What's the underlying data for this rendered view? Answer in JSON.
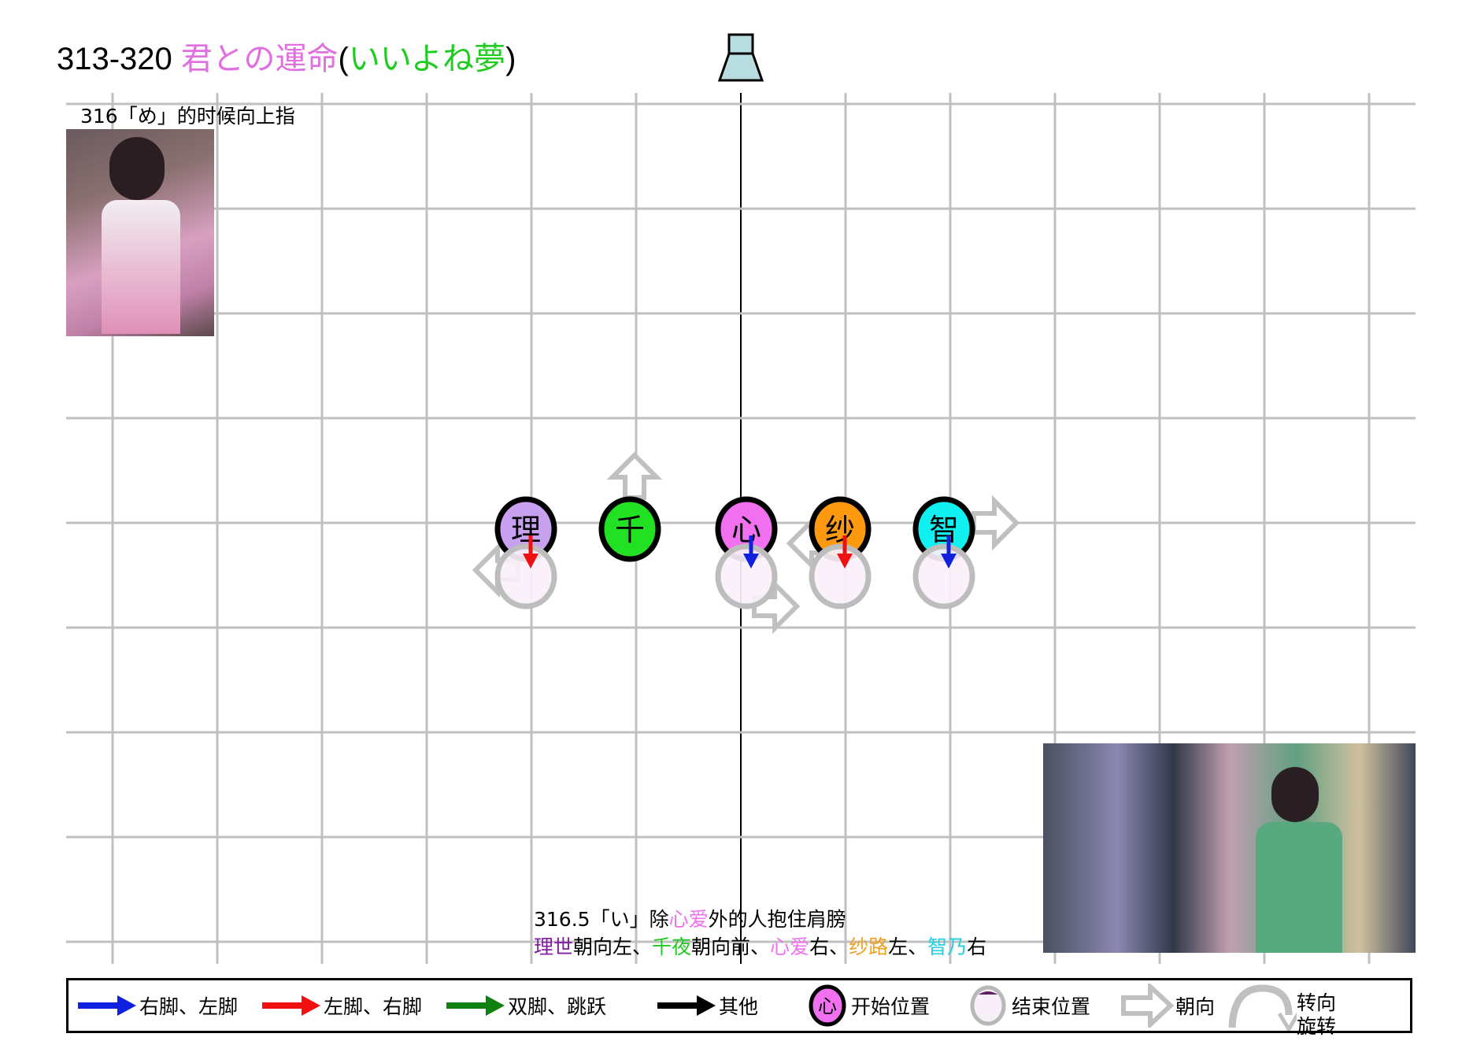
{
  "title": {
    "range": "313-320",
    "song": "君との運命",
    "open": "(",
    "unit": "いいよね夢",
    "close": ")"
  },
  "colors": {
    "rise": "#c8a0f0",
    "chiya": "#22e022",
    "cocoa": "#f070f0",
    "syaro": "#ff9a10",
    "chino": "#10f0f0",
    "song": "#e070e0",
    "unit": "#20cc20",
    "grid": "#c0c0c0",
    "stage": "#b8dde0"
  },
  "annotations": {
    "top_note": "316「め」的时候向上指",
    "bottom_line1": {
      "prefix": "316.5「い」除",
      "cocoa": "心爱",
      "suffix": "外的人抱住肩膀"
    },
    "bottom_line2": [
      {
        "name": "理世",
        "text": "朝向左、"
      },
      {
        "name": "千夜",
        "text": "朝向前、"
      },
      {
        "name": "心爱",
        "text": "右、"
      },
      {
        "name": "纱路",
        "text": "左、"
      },
      {
        "name": "智乃",
        "text": "右"
      }
    ]
  },
  "members": [
    {
      "label": "理",
      "name": "理世",
      "color": "#c8a0f0",
      "facing": "left",
      "foot": "left"
    },
    {
      "label": "千",
      "name": "千夜",
      "color": "#22e022",
      "facing": "front",
      "foot": "none"
    },
    {
      "label": "心",
      "name": "心爱",
      "color": "#f070f0",
      "facing": "right",
      "foot": "right"
    },
    {
      "label": "纱",
      "name": "纱路",
      "color": "#ff9a10",
      "facing": "left",
      "foot": "left"
    },
    {
      "label": "智",
      "name": "智乃",
      "color": "#10f0f0",
      "facing": "right",
      "foot": "right"
    }
  ],
  "legend": {
    "right_foot": "右脚、左脚",
    "left_foot": "左脚、右脚",
    "both_feet": "双脚、跳跃",
    "other": "其他",
    "start_icon": "心",
    "start": "开始位置",
    "end": "结束位置",
    "facing": "朝向",
    "turn1": "转向",
    "turn2": "旋转"
  }
}
